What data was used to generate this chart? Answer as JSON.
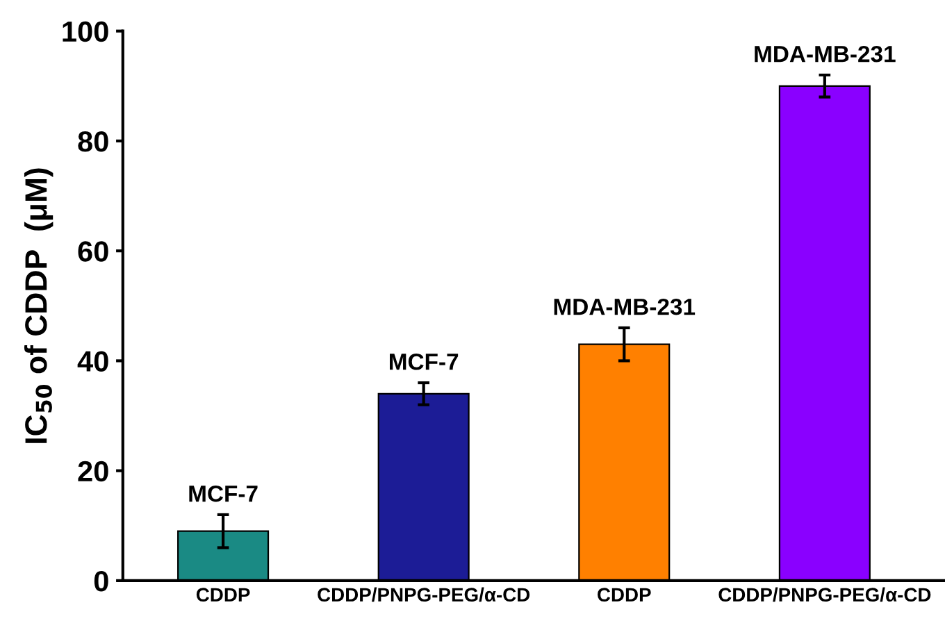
{
  "chart_data": {
    "type": "bar",
    "categories": [
      "CDDP",
      "CDDP/PNPG-PEG/α-CD",
      "CDDP",
      "CDDP/PNPG-PEG/α-CD"
    ],
    "values": [
      9,
      34,
      43,
      90
    ],
    "errors": [
      3,
      2,
      3,
      2
    ],
    "colors": [
      "#1a8a84",
      "#1c1c96",
      "#ff8000",
      "#8a00ff"
    ],
    "ylabel": "IC$_{50}$ of CDDP  (μM)",
    "ylim": [
      0,
      100
    ],
    "yticks": [
      0,
      20,
      40,
      60,
      80,
      100
    ],
    "annotations": [
      "MCF-7",
      "MCF-7",
      "MDA-MB-231",
      "MDA-MB-231"
    ],
    "grid": false,
    "legend": false
  }
}
